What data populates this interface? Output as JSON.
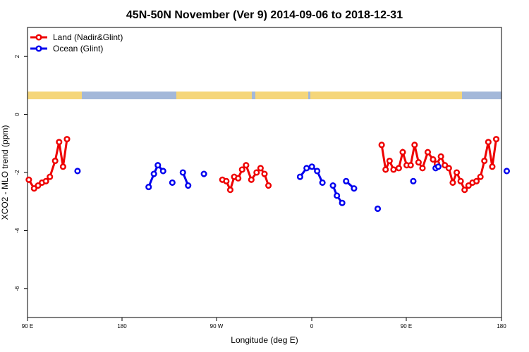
{
  "chart_data": {
    "type": "line",
    "title": "45N-50N November (Ver 9)   2014-09-06 to 2018-12-31",
    "xlabel": "Longitude (deg E)",
    "ylabel": "XCO2 - MLO trend (ppm)",
    "xlim": [
      90,
      450
    ],
    "ylim": [
      -7,
      3
    ],
    "x_ticks": [
      {
        "value": 90,
        "label": "90 E"
      },
      {
        "value": 180,
        "label": "180"
      },
      {
        "value": 270,
        "label": "90 W"
      },
      {
        "value": 360,
        "label": "0"
      },
      {
        "value": 450,
        "label": "90 E"
      },
      {
        "value": 540,
        "label": "180"
      }
    ],
    "y_ticks": [
      {
        "value": -6,
        "label": "-6"
      },
      {
        "value": -4,
        "label": "-4"
      },
      {
        "value": -2,
        "label": "-2"
      },
      {
        "value": 0,
        "label": "0"
      },
      {
        "value": 2,
        "label": "2"
      }
    ],
    "legend_position": "top-left",
    "grid": false,
    "land_strip_colors": {
      "land": "#f5d67a",
      "ocean": "#a3b8d9"
    },
    "series": [
      {
        "name": "Land (Nadir&Glint)",
        "color": "#ee0000",
        "segments": [
          [
            [
              91,
              -2.25
            ],
            [
              95,
              -2.55
            ],
            [
              98,
              -2.45
            ],
            [
              101,
              -2.35
            ],
            [
              104,
              -2.3
            ],
            [
              107,
              -2.15
            ],
            [
              111,
              -1.6
            ],
            [
              114,
              -0.95
            ],
            [
              117,
              -1.8
            ],
            [
              120,
              -0.85
            ]
          ],
          [
            [
              238,
              -2.25
            ],
            [
              241,
              -2.3
            ],
            [
              244,
              -2.6
            ],
            [
              247,
              -2.15
            ],
            [
              250,
              -2.2
            ],
            [
              253,
              -1.9
            ],
            [
              256,
              -1.75
            ],
            [
              260,
              -2.25
            ],
            [
              264,
              -2.0
            ],
            [
              267,
              -1.85
            ],
            [
              270,
              -2.05
            ],
            [
              273,
              -2.45
            ]
          ],
          [
            [
              359,
              -1.05
            ],
            [
              362,
              -1.9
            ],
            [
              365,
              -1.6
            ],
            [
              368,
              -1.9
            ],
            [
              372,
              -1.85
            ],
            [
              375,
              -1.3
            ],
            [
              378,
              -1.75
            ],
            [
              381,
              -1.75
            ],
            [
              384,
              -1.05
            ],
            [
              387,
              -1.65
            ],
            [
              390,
              -1.85
            ],
            [
              394,
              -1.3
            ],
            [
              398,
              -1.55
            ],
            [
              401,
              -1.7
            ],
            [
              404,
              -1.45
            ],
            [
              407,
              -1.75
            ],
            [
              410,
              -1.85
            ],
            [
              413,
              -2.35
            ],
            [
              416,
              -2.0
            ],
            [
              419,
              -2.3
            ],
            [
              422,
              -2.6
            ],
            [
              425,
              -2.45
            ],
            [
              428,
              -2.35
            ],
            [
              431,
              -2.3
            ],
            [
              434,
              -2.15
            ],
            [
              437,
              -1.6
            ],
            [
              440,
              -0.95
            ],
            [
              443,
              -1.8
            ],
            [
              446,
              -0.85
            ]
          ]
        ]
      },
      {
        "name": "Ocean (Glint)",
        "color": "#0000ee",
        "segments": [
          [
            [
              128,
              -1.95
            ]
          ],
          [
            [
              182,
              -2.5
            ],
            [
              186,
              -2.05
            ],
            [
              189,
              -1.75
            ],
            [
              193,
              -1.95
            ]
          ],
          [
            [
              200,
              -2.35
            ]
          ],
          [
            [
              208,
              -2.0
            ],
            [
              212,
              -2.45
            ]
          ],
          [
            [
              224,
              -2.05
            ]
          ],
          [
            [
              297,
              -2.15
            ],
            [
              302,
              -1.85
            ],
            [
              306,
              -1.8
            ],
            [
              310,
              -1.95
            ],
            [
              314,
              -2.35
            ]
          ],
          [
            [
              322,
              -2.45
            ],
            [
              325,
              -2.8
            ],
            [
              329,
              -3.05
            ]
          ],
          [
            [
              332,
              -2.3
            ],
            [
              338,
              -2.55
            ]
          ],
          [
            [
              356,
              -3.25
            ]
          ],
          [
            [
              383,
              -2.3
            ]
          ],
          [
            [
              400,
              -1.85
            ],
            [
              402,
              -1.8
            ]
          ],
          [
            [
              454,
              -1.95
            ]
          ]
        ]
      }
    ]
  }
}
